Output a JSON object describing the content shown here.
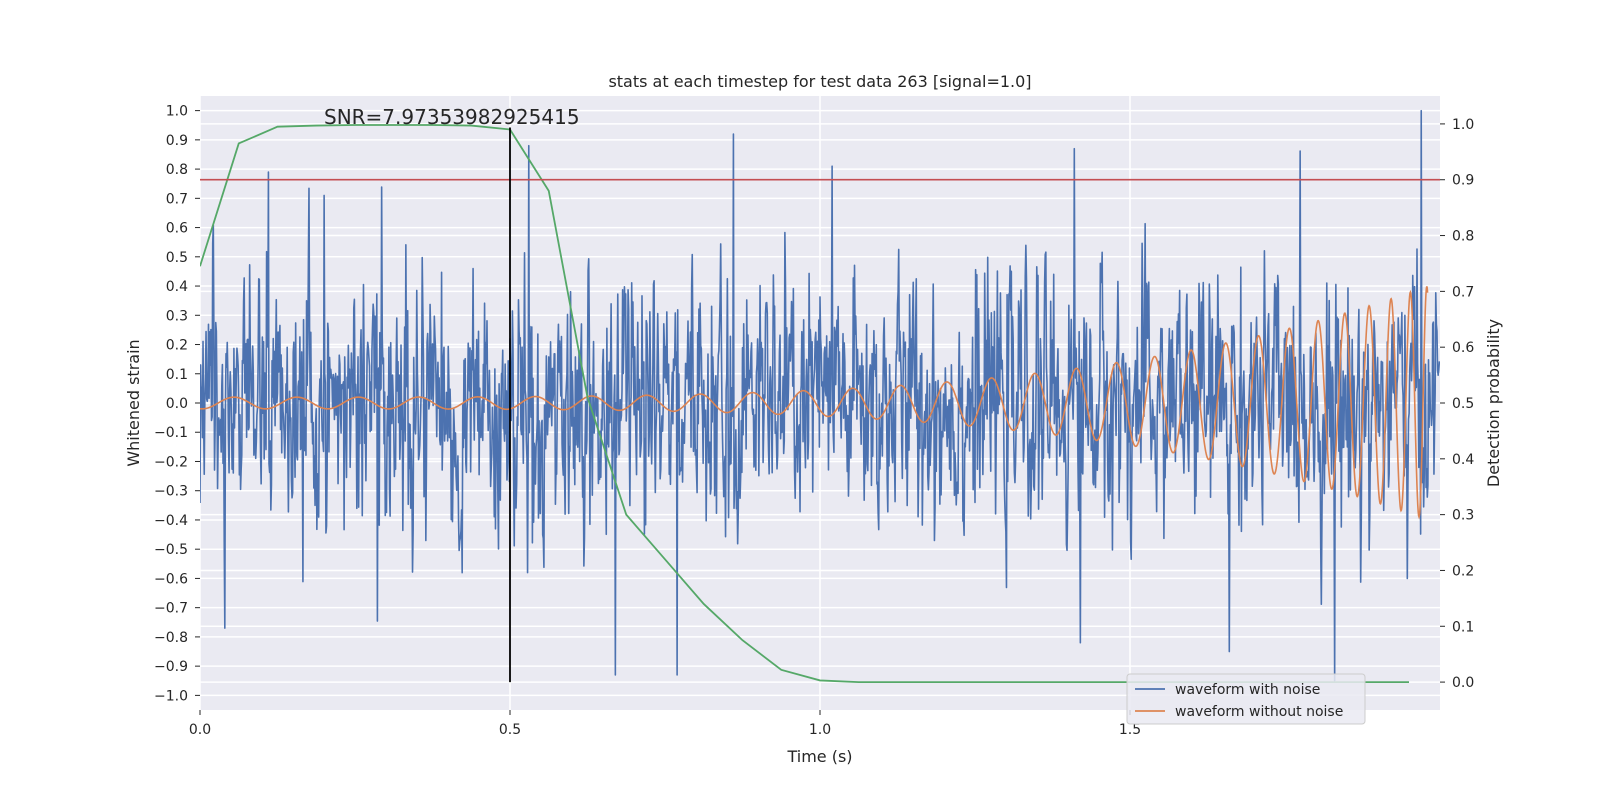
{
  "chart_data": {
    "type": "line",
    "title": "stats at each timestep for test data 263 [signal=1.0]",
    "xlabel": "Time (s)",
    "ylabel": "Whitened strain",
    "y2label": "Detection probability",
    "xlim": [
      0.0,
      2.0
    ],
    "ylim": [
      -1.05,
      1.05
    ],
    "y2lim": [
      -0.05,
      1.05
    ],
    "xticks": [
      0.0,
      0.5,
      1.0,
      1.5
    ],
    "xtick_labels": [
      "0.0",
      "0.5",
      "1.0",
      "1.5"
    ],
    "yticks": [
      -1.0,
      -0.9,
      -0.8,
      -0.7,
      -0.6,
      -0.5,
      -0.4,
      -0.3,
      -0.2,
      -0.1,
      0.0,
      0.1,
      0.2,
      0.3,
      0.4,
      0.5,
      0.6,
      0.7,
      0.8,
      0.9,
      1.0
    ],
    "ytick_labels": [
      "−1.0",
      "−0.9",
      "−0.8",
      "−0.7",
      "−0.6",
      "−0.5",
      "−0.4",
      "−0.3",
      "−0.2",
      "−0.1",
      "0.0",
      "0.1",
      "0.2",
      "0.3",
      "0.4",
      "0.5",
      "0.6",
      "0.7",
      "0.8",
      "0.9",
      "1.0"
    ],
    "y2ticks": [
      0.0,
      0.1,
      0.2,
      0.3,
      0.4,
      0.5,
      0.6,
      0.7,
      0.8,
      0.9,
      1.0
    ],
    "y2tick_labels": [
      "0.0",
      "0.1",
      "0.2",
      "0.3",
      "0.4",
      "0.5",
      "0.6",
      "0.7",
      "0.8",
      "0.9",
      "1.0"
    ],
    "grid": true,
    "legend_position": "bottom-right",
    "annotation": "SNR=7.97353982925415",
    "annotation_x": 0.2,
    "threshold_y2": 0.9,
    "vline_x": 0.5,
    "series": [
      {
        "name": "waveform with noise",
        "color": "#4c72b0",
        "axis": "left",
        "x_range": [
          0.0,
          2.0
        ],
        "sample_count": 2048,
        "amplitude": 1.0,
        "peaks": [
          [
            0.11,
            0.79
          ],
          [
            0.2,
            0.71
          ],
          [
            0.53,
            0.88
          ],
          [
            0.86,
            0.92
          ],
          [
            1.02,
            0.81
          ],
          [
            1.41,
            0.87
          ],
          [
            1.97,
            1.0
          ],
          [
            0.67,
            -0.93
          ],
          [
            0.77,
            -0.93
          ],
          [
            1.83,
            -0.95
          ],
          [
            1.66,
            -0.85
          ],
          [
            1.42,
            -0.82
          ],
          [
            0.04,
            -0.77
          ]
        ]
      },
      {
        "name": "waveform without noise",
        "color": "#dd8452",
        "axis": "left",
        "x_range": [
          0.0,
          2.0
        ],
        "description": "chirp: amplitude ~0.02 at t=0 rising to ~0.4 near t=1.97, frequency rising with time",
        "amplitude_start": 0.02,
        "amplitude_end": 0.4,
        "end_x": 1.98
      },
      {
        "color": "#55a868",
        "axis": "right",
        "x": [
          0.0,
          0.0625,
          0.125,
          0.1875,
          0.25,
          0.3125,
          0.375,
          0.4375,
          0.5,
          0.5625,
          0.625,
          0.6875,
          0.75,
          0.8125,
          0.875,
          0.9375,
          1.0,
          1.0625,
          1.125,
          1.25,
          1.5,
          1.75,
          1.95
        ],
        "values": [
          0.745,
          0.965,
          0.995,
          0.997,
          0.998,
          0.998,
          0.998,
          0.997,
          0.99,
          0.88,
          0.51,
          0.3,
          0.22,
          0.14,
          0.075,
          0.022,
          0.003,
          0.0,
          0.0,
          0.0,
          0.0,
          0.0,
          0.0
        ]
      }
    ]
  }
}
